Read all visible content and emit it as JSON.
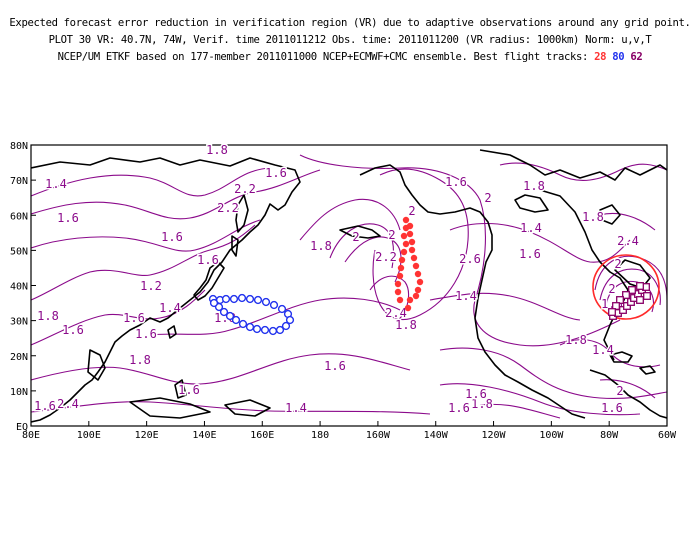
{
  "title": {
    "line1": "Expected forecast error reduction in verification region (VR) due to adaptive observations around any grid point.",
    "line2": "PLOT 30 VR: 40.7N, 74W, Verif. time 2011011212 Obs. time: 2011011200 (VR radius: 1000km) Norm: u,v,T",
    "line3_prefix": "NCEP/UM ETKF based on 177-member 2011011000 NCEP+ECMWF+CMC ensemble. Best flight tracks:",
    "tracks": [
      {
        "label": "28",
        "color": "#ff3333"
      },
      {
        "label": "80",
        "color": "#2233ee"
      },
      {
        "label": "62",
        "color": "#880066"
      }
    ]
  },
  "colors": {
    "contour": "#8b0a8b",
    "coast": "#000000",
    "vr_circle": "#ff2a2a"
  },
  "axes": {
    "x_ticks": [
      "80E",
      "100E",
      "120E",
      "140E",
      "160E",
      "180",
      "160W",
      "140W",
      "120W",
      "100W",
      "80W",
      "60W"
    ],
    "y_ticks": [
      "EQ",
      "10N",
      "20N",
      "30N",
      "40N",
      "50N",
      "60N",
      "70N",
      "80N"
    ]
  },
  "contour_labels": [
    "1.8",
    "1.4",
    "1.6",
    "2.2",
    "2.2",
    "1.6",
    "1.6",
    "1.6",
    "1.2",
    "1.4",
    "1.6",
    "1.8",
    "1.6",
    "1.6",
    "1.8",
    "2.4",
    "1.8",
    "2",
    "2.2",
    "2",
    "2",
    "2.6",
    "2.4",
    "1.8",
    "1.4",
    "1.6",
    "1.6",
    "1.8",
    "2",
    "1.8",
    "1.6",
    "1.8",
    "1.4",
    "1.6",
    "1.4",
    "1.6",
    "1.8",
    "1.6",
    "1.6",
    "2",
    "2.4",
    "2",
    "2",
    "1.8",
    "1.8",
    "1.6",
    "1.4"
  ],
  "map": {
    "lon_range": [
      "80E",
      "60W"
    ],
    "lat_range": [
      "EQ",
      "80N"
    ],
    "vr_center": "40.7N, 74W",
    "vr_radius": "1000km"
  }
}
